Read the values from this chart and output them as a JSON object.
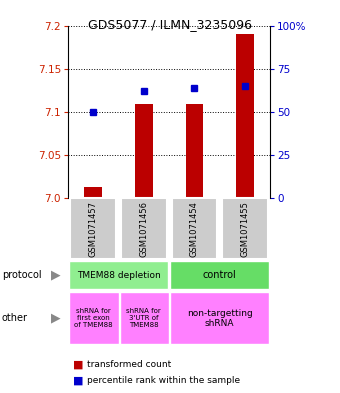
{
  "title": "GDS5077 / ILMN_3235096",
  "samples": [
    "GSM1071457",
    "GSM1071456",
    "GSM1071454",
    "GSM1071455"
  ],
  "red_values": [
    7.013,
    7.109,
    7.109,
    7.19
  ],
  "blue_values": [
    50,
    62,
    64,
    65
  ],
  "ylim": [
    7.0,
    7.2
  ],
  "yticks_left": [
    7.0,
    7.05,
    7.1,
    7.15,
    7.2
  ],
  "yticks_right": [
    0,
    25,
    50,
    75,
    100
  ],
  "protocol_colors": [
    "#90EE90",
    "#66DD66"
  ],
  "other_label1": "shRNA for\nfirst exon\nof TMEM88",
  "other_label2": "shRNA for\n3'UTR of\nTMEM88",
  "other_label3": "non-targetting\nshRNA",
  "sample_bg": "#CCCCCC",
  "red_color": "#BB0000",
  "blue_color": "#0000CC",
  "left_axis_color": "#CC2200",
  "right_axis_color": "#0000CC",
  "pink": "#FF80FF",
  "bar_width": 0.35
}
